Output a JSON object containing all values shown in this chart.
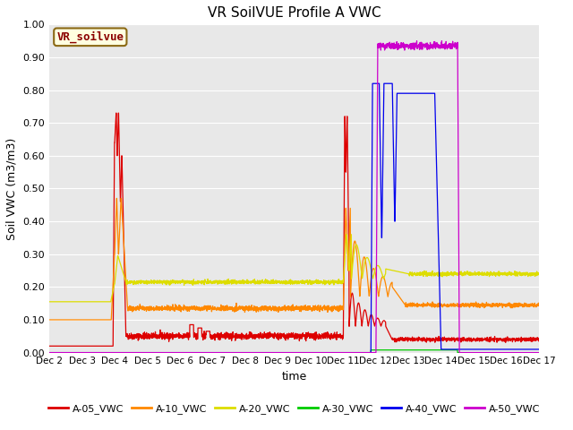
{
  "title": "VR SoilVUE Profile A VWC",
  "ylabel": "Soil VWC (m3/m3)",
  "xlabel": "time",
  "ylim": [
    0.0,
    1.0
  ],
  "yticks": [
    0.0,
    0.1,
    0.2,
    0.3,
    0.4,
    0.5,
    0.6,
    0.7,
    0.8,
    0.9,
    1.0
  ],
  "xtick_labels": [
    "Dec 2",
    "Dec 3",
    "Dec 4",
    "Dec 5",
    "Dec 6",
    "Dec 7",
    "Dec 8",
    "Dec 9",
    "Dec 10",
    "Dec 11",
    "Dec 12",
    "Dec 13",
    "Dec 14",
    "Dec 15",
    "Dec 16",
    "Dec 17"
  ],
  "legend_label": "VR_soilvue",
  "legend_text_color": "#8B0000",
  "legend_box_facecolor": "#FFFFE0",
  "legend_box_edge": "#8B6914",
  "plot_bg": "#e8e8e8",
  "fig_bg": "#ffffff",
  "grid_color": "#ffffff",
  "series_colors": {
    "A-05_VWC": "#dd0000",
    "A-10_VWC": "#ff8800",
    "A-20_VWC": "#dddd00",
    "A-30_VWC": "#00cc00",
    "A-40_VWC": "#0000ee",
    "A-50_VWC": "#cc00cc"
  },
  "figsize": [
    6.4,
    4.8
  ],
  "dpi": 100
}
